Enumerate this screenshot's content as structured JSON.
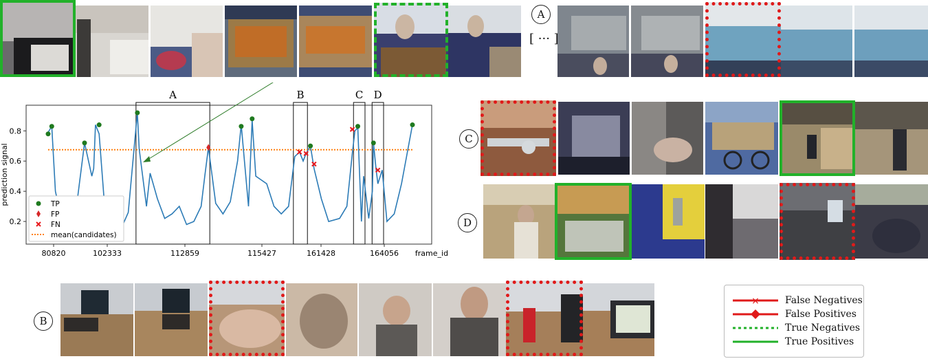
{
  "colors": {
    "signal": "#2c7bb6",
    "mean": "#ff7f0e",
    "tp": "#1f7a1f",
    "fp": "#d62728",
    "fn": "#e8191d",
    "true_green": "#22b12a",
    "false_red": "#e01a1a"
  },
  "sequences": {
    "A": {
      "label": "A",
      "ellipsis": "[ ··· ]"
    },
    "B": {
      "label": "B"
    },
    "C": {
      "label": "C"
    },
    "D": {
      "label": "D"
    }
  },
  "legend": {
    "items": [
      {
        "label": "False Negatives",
        "style": "red-line-x"
      },
      {
        "label": "False Positives",
        "style": "red-line-diamond"
      },
      {
        "label": "True Negatives",
        "style": "green-dotted"
      },
      {
        "label": "True Positives",
        "style": "green-solid"
      }
    ]
  },
  "chart_data": {
    "type": "line",
    "ylabel": "prediction signal",
    "xlabel": "frame_id",
    "x_tick_labels": [
      "80820",
      "102333",
      "112859",
      "115427",
      "161428",
      "164056"
    ],
    "y_ticks": [
      0.2,
      0.4,
      0.6,
      0.8
    ],
    "ylim": [
      0.05,
      0.97
    ],
    "mean_candidates": 0.675,
    "grid": false,
    "legend_position": "lower-left",
    "legend": [
      "TP",
      "FP",
      "FN",
      "mean(candidates)"
    ],
    "boxes": [
      {
        "label": "A",
        "x_start": 0.245,
        "x_end": 0.44
      },
      {
        "label": "B",
        "x_start": 0.677,
        "x_end": 0.708
      },
      {
        "label": "C",
        "x_start": 0.842,
        "x_end": 0.866
      },
      {
        "label": "D",
        "x_start": 0.893,
        "x_end": 0.917
      }
    ],
    "series": [
      {
        "name": "prediction signal",
        "x": [
          0.0,
          0.01,
          0.02,
          0.04,
          0.07,
          0.1,
          0.12,
          0.125,
          0.13,
          0.14,
          0.155,
          0.17,
          0.18,
          0.2,
          0.22,
          0.245,
          0.25,
          0.27,
          0.28,
          0.3,
          0.32,
          0.34,
          0.36,
          0.38,
          0.4,
          0.42,
          0.43,
          0.44,
          0.46,
          0.48,
          0.5,
          0.52,
          0.53,
          0.55,
          0.56,
          0.57,
          0.6,
          0.62,
          0.64,
          0.66,
          0.677,
          0.69,
          0.7,
          0.708,
          0.72,
          0.73,
          0.75,
          0.77,
          0.8,
          0.82,
          0.835,
          0.842,
          0.85,
          0.86,
          0.866,
          0.88,
          0.89,
          0.893,
          0.9,
          0.905,
          0.917,
          0.93,
          0.95,
          0.97,
          1.0
        ],
        "y": [
          0.79,
          0.83,
          0.4,
          0.18,
          0.15,
          0.72,
          0.5,
          0.55,
          0.84,
          0.78,
          0.3,
          0.18,
          0.2,
          0.15,
          0.26,
          0.92,
          0.68,
          0.3,
          0.52,
          0.35,
          0.22,
          0.25,
          0.3,
          0.18,
          0.2,
          0.3,
          0.5,
          0.69,
          0.32,
          0.25,
          0.33,
          0.6,
          0.84,
          0.3,
          0.87,
          0.5,
          0.45,
          0.3,
          0.25,
          0.3,
          0.63,
          0.66,
          0.6,
          0.65,
          0.7,
          0.55,
          0.35,
          0.2,
          0.22,
          0.3,
          0.65,
          0.8,
          0.82,
          0.2,
          0.5,
          0.22,
          0.4,
          0.72,
          0.55,
          0.45,
          0.54,
          0.2,
          0.25,
          0.45,
          0.84
        ]
      }
    ],
    "markers": {
      "TP": [
        [
          0.0,
          0.78
        ],
        [
          0.01,
          0.83
        ],
        [
          0.1,
          0.72
        ],
        [
          0.14,
          0.84
        ],
        [
          0.245,
          0.92
        ],
        [
          0.53,
          0.83
        ],
        [
          0.56,
          0.88
        ],
        [
          0.72,
          0.7
        ],
        [
          0.85,
          0.83
        ],
        [
          0.893,
          0.72
        ],
        [
          1.0,
          0.84
        ]
      ],
      "FP": [
        [
          0.44,
          0.69
        ]
      ],
      "FN": [
        [
          0.69,
          0.66
        ],
        [
          0.708,
          0.65
        ],
        [
          0.73,
          0.58
        ],
        [
          0.835,
          0.81
        ],
        [
          0.905,
          0.54
        ]
      ]
    }
  }
}
